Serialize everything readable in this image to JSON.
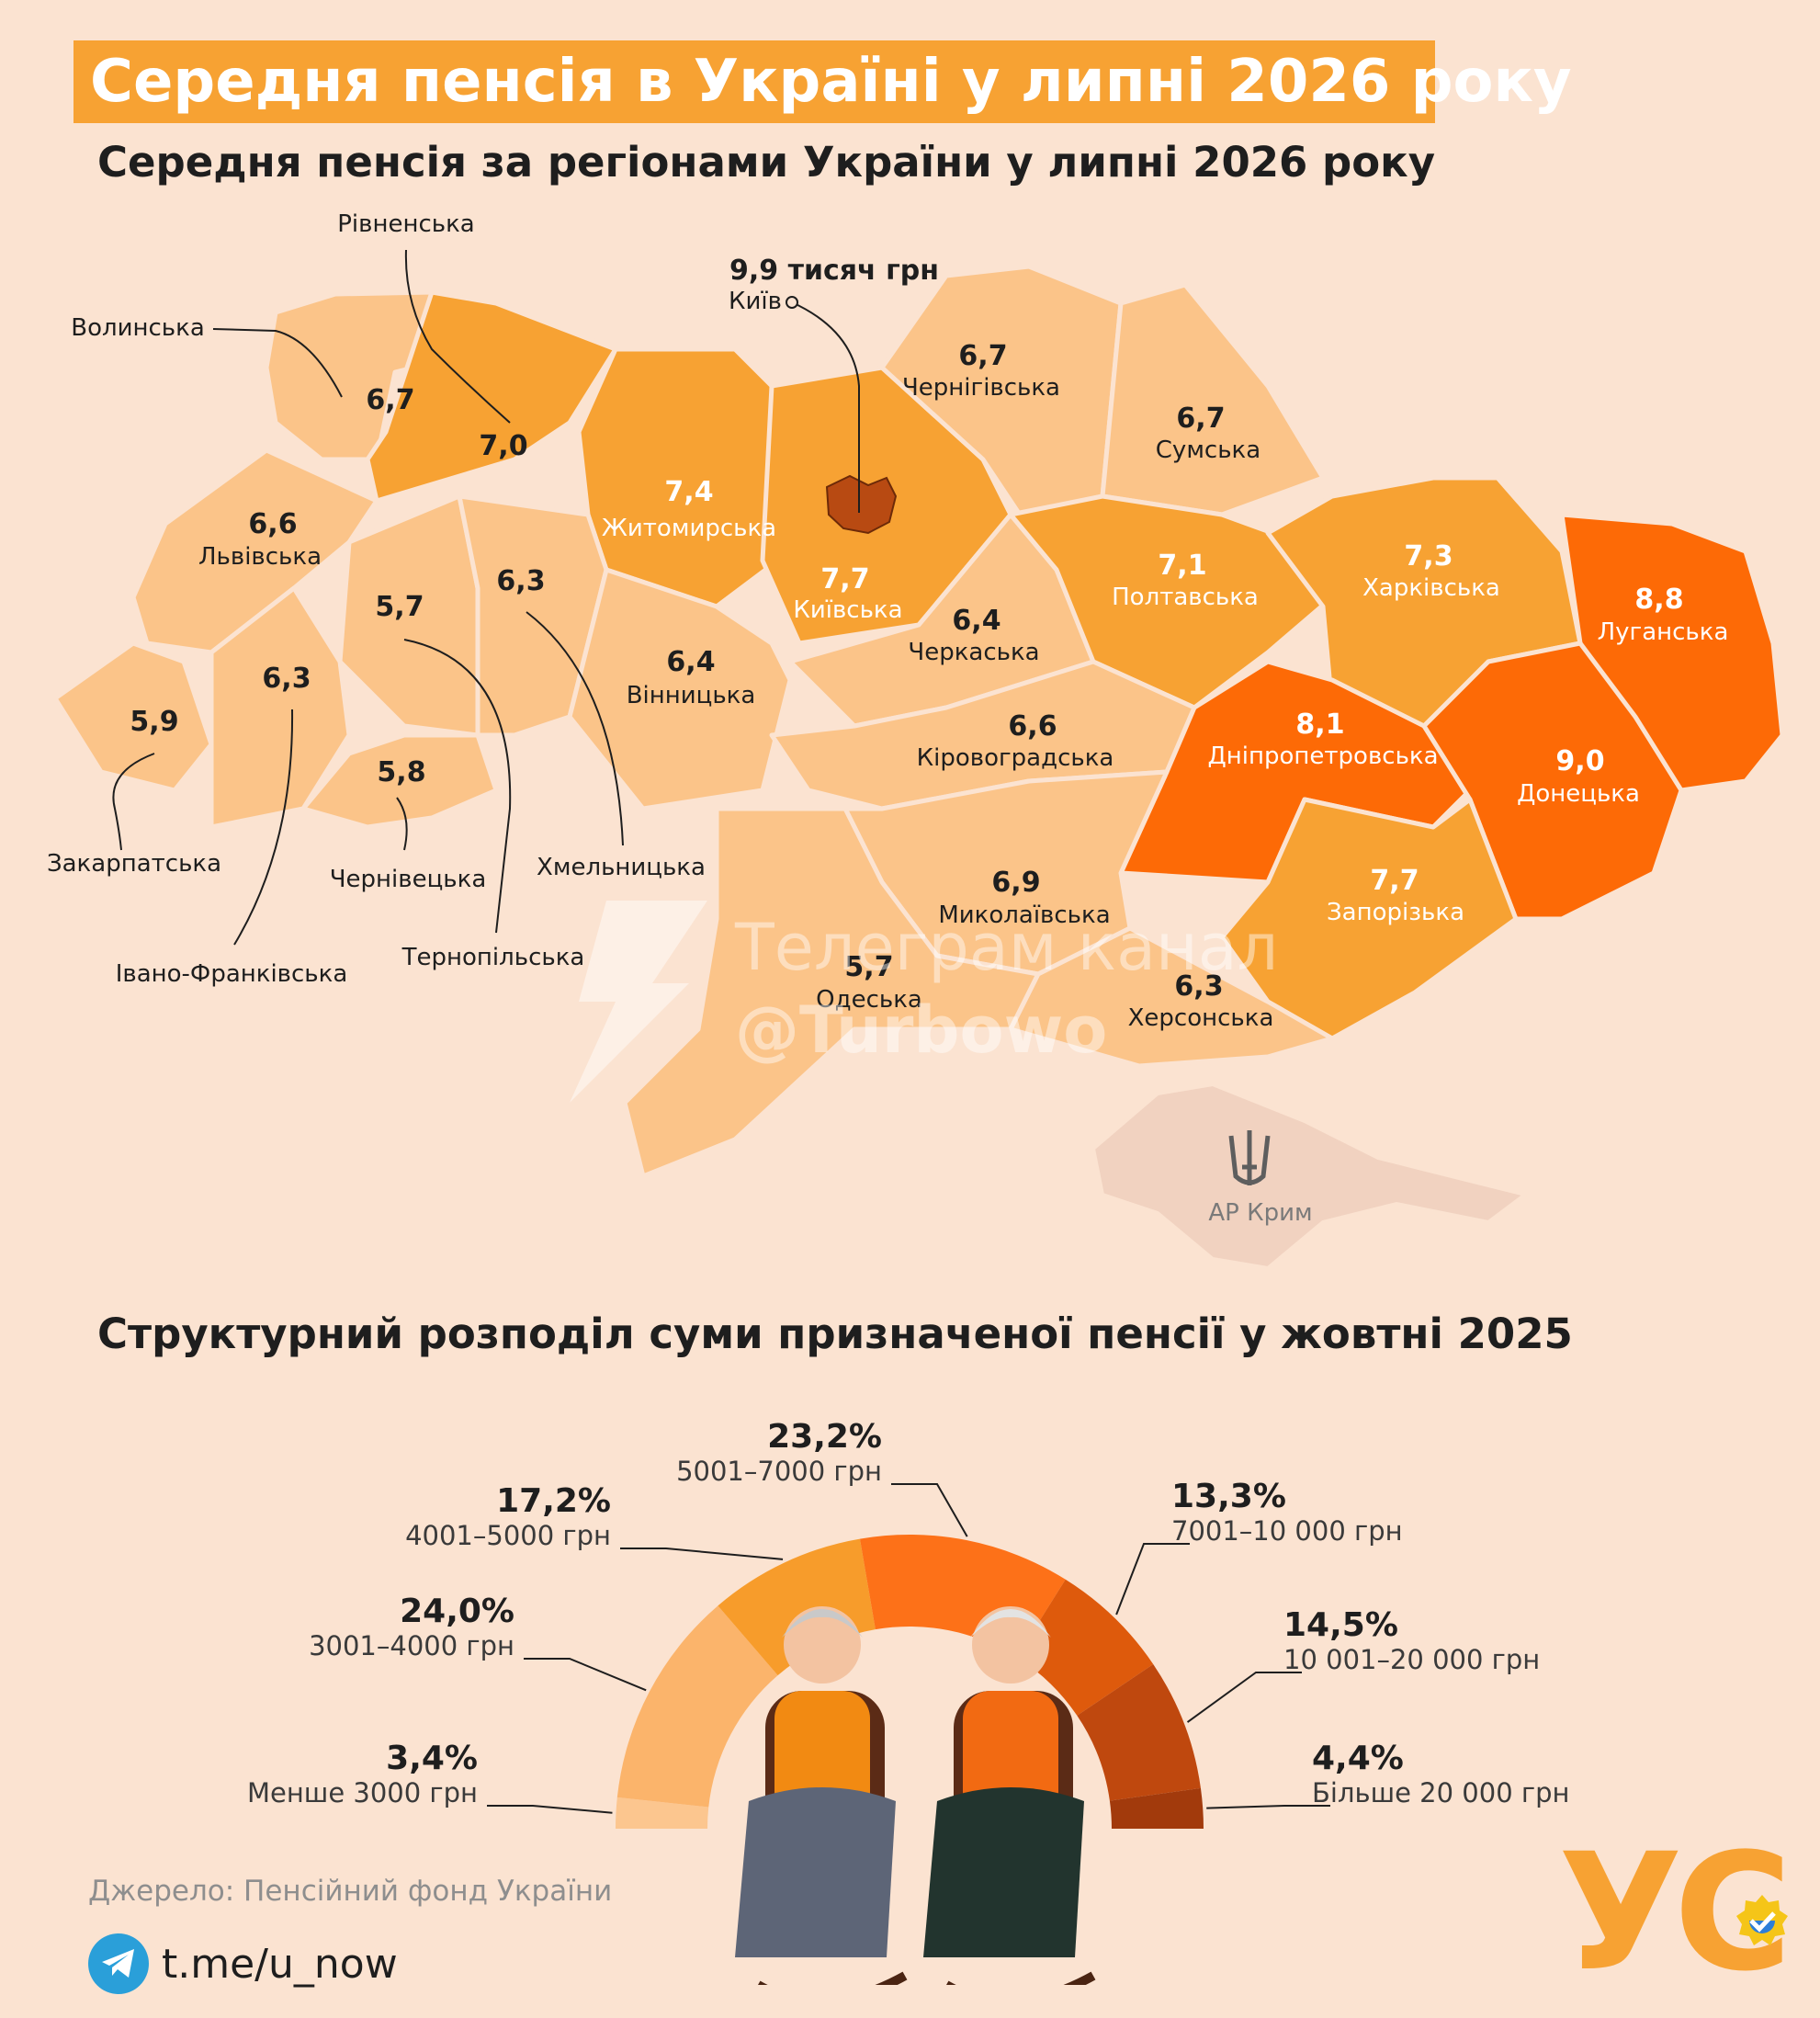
{
  "header": {
    "title": "Середня пенсія в Україні у липні 2026 року",
    "map_subtitle": "Середня пенсія за регіонами України у липні 2026 року",
    "chart_subtitle": "Структурний розподіл суми призначеної пенсії у жовтні 2025"
  },
  "map": {
    "kyiv_value": "9,9 тисяч грн",
    "kyiv_name": "Київ",
    "crimea_name": "АР Крим",
    "regions": [
      {
        "name": "Волинська",
        "value": "6,7"
      },
      {
        "name": "Рівненська",
        "value": "7,0"
      },
      {
        "name": "Житомирська",
        "value": "7,4"
      },
      {
        "name": "Київська",
        "value": "7,7"
      },
      {
        "name": "Чернігівська",
        "value": "6,7"
      },
      {
        "name": "Сумська",
        "value": "6,7"
      },
      {
        "name": "Львівська",
        "value": "6,6"
      },
      {
        "name": "Тернопільська",
        "value": "5,7"
      },
      {
        "name": "Хмельницька",
        "value": "6,3"
      },
      {
        "name": "Вінницька",
        "value": "6,4"
      },
      {
        "name": "Черкаська",
        "value": "6,4"
      },
      {
        "name": "Полтавська",
        "value": "7,1"
      },
      {
        "name": "Харківська",
        "value": "7,3"
      },
      {
        "name": "Луганська",
        "value": "8,8"
      },
      {
        "name": "Закарпатська",
        "value": "5,9"
      },
      {
        "name": "Івано-Франківська",
        "value": "6,3"
      },
      {
        "name": "Чернівецька",
        "value": "5,8"
      },
      {
        "name": "Кіровоградська",
        "value": "6,6"
      },
      {
        "name": "Дніпропетровська",
        "value": "8,1"
      },
      {
        "name": "Донецька",
        "value": "9,0"
      },
      {
        "name": "Запорізька",
        "value": "7,7"
      },
      {
        "name": "Миколаївська",
        "value": "6,9"
      },
      {
        "name": "Одеська",
        "value": "5,7"
      },
      {
        "name": "Херсонська",
        "value": "6,3"
      }
    ],
    "colors": {
      "light": "#fbc489",
      "medium": "#f7a233",
      "dark": "#fd6a06",
      "crimea": "#f1d2c0"
    }
  },
  "watermark": {
    "line1": "Телеграм канал",
    "line2": "@Turbowo"
  },
  "chart_data": {
    "type": "pie",
    "title": "Структурний розподіл суми призначеної пенсії у жовтні 2025",
    "categories": [
      "Менше 3000 грн",
      "3001–4000 грн",
      "4001–5000 грн",
      "5001–7000 грн",
      "7001–10 000 грн",
      "10 001–20 000 грн",
      "Більше 20 000 грн"
    ],
    "values": [
      3.4,
      24.0,
      17.2,
      23.2,
      13.3,
      14.5,
      4.4
    ],
    "value_labels": [
      "3,4%",
      "24,0%",
      "17,2%",
      "23,2%",
      "13,3%",
      "14,5%",
      "4,4%"
    ],
    "colors": [
      "#fcc68f",
      "#fbb46b",
      "#f79c2b",
      "#fd7118",
      "#de5a0c",
      "#bf480e",
      "#a23a0c"
    ]
  },
  "footer": {
    "source": "Джерело: Пенсійний фонд України",
    "telegram": "t.me/u_now",
    "brand": "УС"
  }
}
